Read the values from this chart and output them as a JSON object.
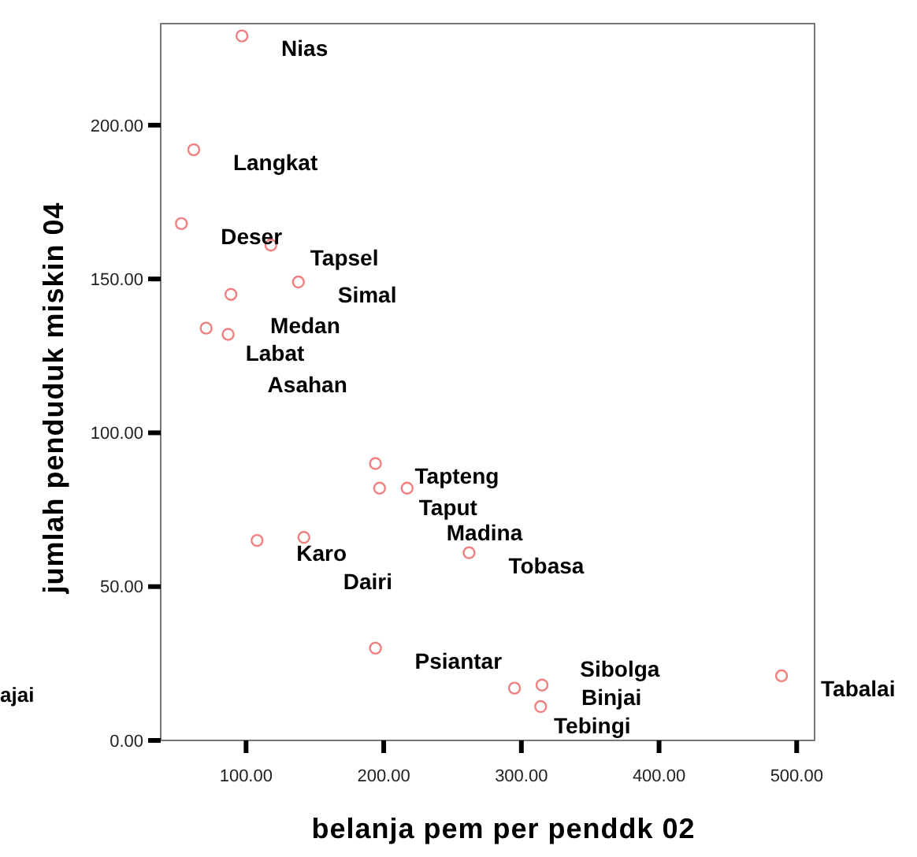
{
  "chart_data": {
    "type": "scatter",
    "xlabel": "belanja pem per penddk 02",
    "ylabel": "jumlah penduduk miskin 04",
    "marker": "circle",
    "grid": false,
    "xlim": [
      38,
      513
    ],
    "ylim": [
      0,
      233
    ],
    "xticks": [
      {
        "value": 100,
        "label": "100.00"
      },
      {
        "value": 200,
        "label": "200.00"
      },
      {
        "value": 300,
        "label": "300.00"
      },
      {
        "value": 400,
        "label": "400.00"
      },
      {
        "value": 500,
        "label": "500.00"
      }
    ],
    "yticks": [
      {
        "value": 0,
        "label": "0.00"
      },
      {
        "value": 50,
        "label": "50.00"
      },
      {
        "value": 100,
        "label": "100.00"
      },
      {
        "value": 150,
        "label": "150.00"
      },
      {
        "value": 200,
        "label": "200.00"
      }
    ],
    "series": [
      {
        "color": "#f08080",
        "x": [
          97,
          62,
          53,
          118,
          138,
          89,
          71,
          87,
          194,
          197,
          217,
          108,
          142,
          262,
          194,
          315,
          295,
          314,
          489
        ],
        "values": [
          229,
          192,
          168,
          161,
          149,
          145,
          134,
          132,
          90,
          82,
          82,
          65,
          66,
          61,
          30,
          18,
          17,
          11,
          21
        ]
      }
    ],
    "annotations": [
      {
        "text": "Nias",
        "x": 97,
        "y": 229
      },
      {
        "text": "Langkat",
        "x": 62,
        "y": 192
      },
      {
        "text": "Deser",
        "x": 53,
        "y": 168
      },
      {
        "text": "Tapsel",
        "x": 118,
        "y": 161
      },
      {
        "text": "Simal",
        "x": 138,
        "y": 149
      },
      {
        "text": "Medan",
        "x": 89,
        "y": 145
      },
      {
        "text": "Labat",
        "x": 71,
        "y": 134
      },
      {
        "text": "Asahan",
        "x": 87,
        "y": 132
      },
      {
        "text": "Tapteng",
        "x": 194,
        "y": 90
      },
      {
        "text": "Taput",
        "x": 197,
        "y": 82
      },
      {
        "text": "Madina",
        "x": 217,
        "y": 82
      },
      {
        "text": "Karo",
        "x": 108,
        "y": 65
      },
      {
        "text": "Dairi",
        "x": 142,
        "y": 66
      },
      {
        "text": "Tobasa",
        "x": 262,
        "y": 61
      },
      {
        "text": "Psiantar",
        "x": 194,
        "y": 30
      },
      {
        "text": "Binjai",
        "x": 315,
        "y": 18
      },
      {
        "text": "Tebingi",
        "x": 295,
        "y": 17
      },
      {
        "text": "Sibolga",
        "x": 314,
        "y": 11
      },
      {
        "text": "Tabalai",
        "x": 489,
        "y": 21
      },
      "ajai"
    ]
  }
}
